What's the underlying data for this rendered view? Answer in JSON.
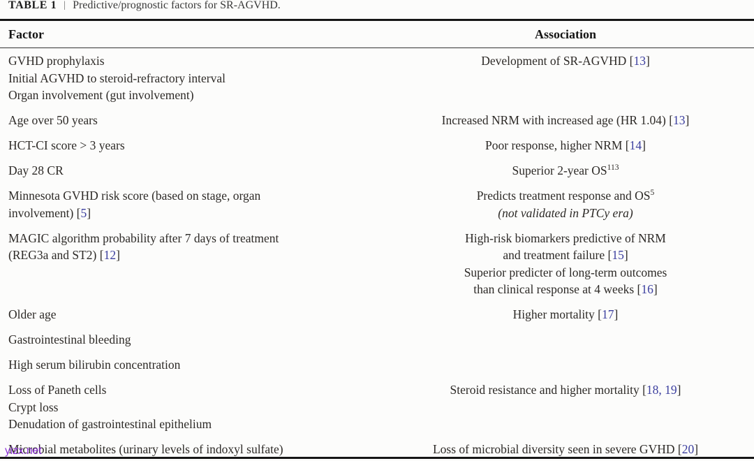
{
  "caption": {
    "label": "TABLE 1",
    "separator": "|",
    "text": "Predictive/prognostic factors for SR-AGVHD."
  },
  "header": {
    "factor": "Factor",
    "association": "Association"
  },
  "rows": [
    {
      "factor": [
        [
          "GVHD prophylaxis"
        ],
        [
          "Initial AGVHD to steroid-refractory interval"
        ],
        [
          "Organ involvement (gut involvement)"
        ]
      ],
      "assoc": [
        [
          "Development of SR-AGVHD [",
          {
            "t": "13",
            "s": "ref"
          },
          "]"
        ]
      ]
    },
    {
      "factor": [
        [
          "Age over 50 years"
        ]
      ],
      "assoc": [
        [
          "Increased NRM with increased age (HR 1.04) [",
          {
            "t": "13",
            "s": "ref"
          },
          "]"
        ]
      ]
    },
    {
      "factor": [
        [
          "HCT-CI score > 3 years"
        ]
      ],
      "assoc": [
        [
          "Poor response, higher NRM [",
          {
            "t": "14",
            "s": "ref"
          },
          "]"
        ]
      ]
    },
    {
      "factor": [
        [
          "Day 28 CR"
        ]
      ],
      "assoc": [
        [
          "Superior 2-year OS",
          {
            "t": "113",
            "s": "sup"
          }
        ]
      ]
    },
    {
      "factor": [
        [
          "Minnesota GVHD risk score (based on stage, organ"
        ],
        [
          "involvement) [",
          {
            "t": "5",
            "s": "ref"
          },
          "]"
        ]
      ],
      "assoc": [
        [
          "Predicts treatment response and OS",
          {
            "t": "5",
            "s": "sup"
          }
        ],
        [
          {
            "t": "(not validated in PTCy era)",
            "s": "i"
          }
        ]
      ]
    },
    {
      "factor": [
        [
          "MAGIC algorithm probability after 7 days of treatment"
        ],
        [
          "(REG3a and ST2) [",
          {
            "t": "12",
            "s": "ref"
          },
          "]"
        ]
      ],
      "assoc": [
        [
          "High-risk biomarkers predictive of NRM"
        ],
        [
          "and treatment failure [",
          {
            "t": "15",
            "s": "ref"
          },
          "]"
        ],
        [
          "Superior predicter of long-term outcomes"
        ],
        [
          "than clinical response at 4 weeks [",
          {
            "t": "16",
            "s": "ref"
          },
          "]"
        ]
      ]
    },
    {
      "factor": [
        [
          "Older age"
        ]
      ],
      "assoc": [
        [
          "Higher mortality [",
          {
            "t": "17",
            "s": "ref"
          },
          "]"
        ]
      ]
    },
    {
      "factor": [
        [
          "Gastrointestinal bleeding"
        ]
      ],
      "assoc": []
    },
    {
      "factor": [
        [
          "High serum bilirubin concentration"
        ]
      ],
      "assoc": []
    },
    {
      "factor": [
        [
          "Loss of Paneth cells"
        ],
        [
          "Crypt loss"
        ],
        [
          "Denudation of gastrointestinal epithelium"
        ]
      ],
      "assoc": [
        [
          "Steroid resistance and higher mortality [",
          {
            "t": "18, 19",
            "s": "ref"
          },
          "]"
        ]
      ]
    },
    {
      "factor": [
        [
          "Microbial metabolites (urinary levels of indoxyl sulfate)"
        ]
      ],
      "assoc": [
        [
          "Loss of microbial diversity seen in severe GVHD [",
          {
            "t": "20",
            "s": "ref"
          },
          "]"
        ]
      ]
    }
  ],
  "watermark": "yizx.net",
  "colors": {
    "citation": "#3c3f9f",
    "text": "#2d2a27",
    "rule": "#161616",
    "watermark": "#8a2bd8"
  }
}
